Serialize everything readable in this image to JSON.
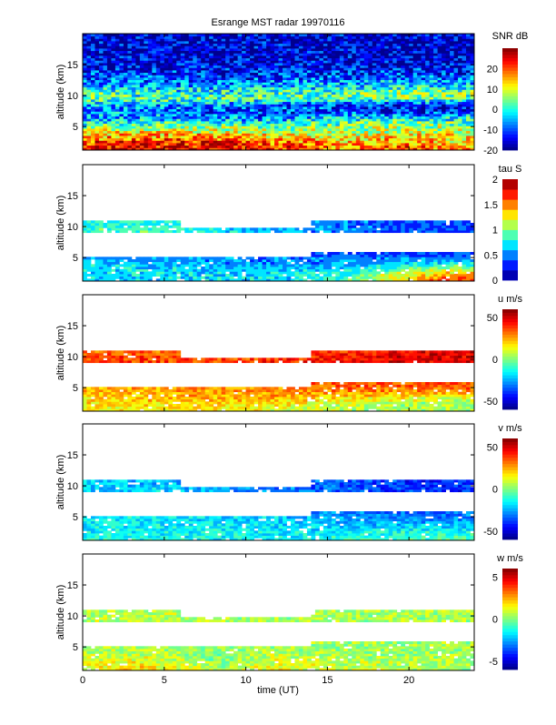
{
  "chart_data": {
    "type": "heatmap",
    "title": "Esrange MST radar 19970116",
    "xlabel": "time (UT)",
    "xlim": [
      0,
      24
    ],
    "xticks": [
      0,
      5,
      10,
      15,
      20
    ],
    "ylabel": "altitude (km)",
    "ylim": [
      1.2,
      20
    ],
    "yticks": [
      5,
      10,
      15
    ],
    "grid_times": [
      0,
      4,
      8,
      12,
      16,
      20,
      24
    ],
    "grid_altitudes": [
      1.5,
      2.5,
      3.5,
      4.5,
      5.5,
      6.5,
      7.5,
      8.5,
      9.5,
      10.5,
      11.5,
      13,
      15,
      17,
      19
    ],
    "panels": [
      {
        "name": "snr",
        "colorbar_label": "SNR dB",
        "clim": [
          -20,
          30
        ],
        "cticks": [
          -20,
          -10,
          0,
          10,
          20
        ],
        "levels": 32,
        "values": [
          [
            24,
            25,
            24,
            22,
            18,
            20,
            16
          ],
          [
            20,
            23,
            24,
            18,
            15,
            17,
            12
          ],
          [
            15,
            16,
            15,
            12,
            10,
            13,
            12
          ],
          [
            10,
            10,
            10,
            6,
            6,
            8,
            8
          ],
          [
            0,
            2,
            0,
            0,
            4,
            6,
            4
          ],
          [
            -4,
            -6,
            -6,
            -8,
            -4,
            -2,
            -2
          ],
          [
            -6,
            -8,
            -10,
            -12,
            -12,
            -14,
            -14
          ],
          [
            -4,
            -6,
            -6,
            -8,
            -12,
            -14,
            -14
          ],
          [
            4,
            2,
            2,
            2,
            4,
            4,
            2
          ],
          [
            2,
            0,
            0,
            2,
            2,
            6,
            6
          ],
          [
            -4,
            -6,
            -6,
            -4,
            -4,
            -2,
            -4
          ],
          [
            -10,
            -10,
            -12,
            -10,
            -10,
            -8,
            -10
          ],
          [
            -14,
            -15,
            -15,
            -15,
            -15,
            -15,
            -15
          ],
          [
            -16,
            -16,
            -16,
            -16,
            -16,
            -16,
            -16
          ],
          [
            -16,
            -16,
            -16,
            -16,
            -16,
            -16,
            -16
          ]
        ]
      },
      {
        "name": "tau",
        "colorbar_label": "tau S",
        "clim": [
          0,
          2
        ],
        "cticks": [
          0,
          0.5,
          1,
          1.5,
          2
        ],
        "levels": 10,
        "values": [
          [
            0.7,
            0.7,
            0.7,
            0.7,
            0.8,
            1.4,
            1.7
          ],
          [
            0.7,
            0.7,
            0.7,
            0.7,
            0.8,
            1.2,
            1.4
          ],
          [
            0.7,
            0.7,
            0.6,
            0.6,
            0.6,
            0.9,
            1.0
          ],
          [
            0.6,
            0.6,
            0.5,
            0.5,
            0.5,
            0.6,
            0.6
          ],
          [
            null,
            null,
            null,
            null,
            0.4,
            0.4,
            0.4
          ],
          [
            null,
            null,
            null,
            null,
            null,
            null,
            null
          ],
          [
            null,
            null,
            null,
            null,
            null,
            null,
            null
          ],
          [
            null,
            null,
            null,
            null,
            null,
            null,
            null
          ],
          [
            0.9,
            0.9,
            0.7,
            0.6,
            0.5,
            0.4,
            0.4
          ],
          [
            0.8,
            0.8,
            null,
            null,
            0.5,
            0.4,
            0.4
          ],
          [
            null,
            null,
            null,
            null,
            null,
            null,
            null
          ],
          [
            null,
            null,
            null,
            null,
            null,
            null,
            null
          ],
          [
            null,
            null,
            null,
            null,
            null,
            null,
            null
          ],
          [
            null,
            null,
            null,
            null,
            null,
            null,
            null
          ],
          [
            null,
            null,
            null,
            null,
            null,
            null,
            null
          ]
        ]
      },
      {
        "name": "u",
        "colorbar_label": "u m/s",
        "clim": [
          -60,
          60
        ],
        "cticks": [
          -50,
          0,
          50
        ],
        "levels": 32,
        "values": [
          [
            15,
            15,
            15,
            12,
            5,
            5,
            5
          ],
          [
            18,
            20,
            20,
            18,
            8,
            5,
            5
          ],
          [
            20,
            22,
            25,
            25,
            20,
            15,
            12
          ],
          [
            22,
            25,
            28,
            30,
            30,
            30,
            30
          ],
          [
            null,
            null,
            null,
            null,
            35,
            35,
            35
          ],
          [
            null,
            null,
            null,
            null,
            null,
            null,
            null
          ],
          [
            null,
            null,
            null,
            null,
            null,
            null,
            null
          ],
          [
            null,
            null,
            null,
            null,
            null,
            null,
            null
          ],
          [
            38,
            38,
            38,
            40,
            45,
            48,
            50
          ],
          [
            35,
            35,
            null,
            null,
            42,
            48,
            50
          ],
          [
            null,
            null,
            null,
            null,
            null,
            null,
            null
          ],
          [
            null,
            null,
            null,
            null,
            null,
            null,
            null
          ],
          [
            null,
            null,
            null,
            null,
            null,
            null,
            null
          ],
          [
            null,
            null,
            null,
            null,
            null,
            null,
            null
          ],
          [
            null,
            null,
            null,
            null,
            null,
            null,
            null
          ]
        ]
      },
      {
        "name": "v",
        "colorbar_label": "v m/s",
        "clim": [
          -60,
          60
        ],
        "cticks": [
          -50,
          0,
          50
        ],
        "levels": 32,
        "values": [
          [
            -12,
            -12,
            -14,
            -15,
            -10,
            -8,
            -8
          ],
          [
            -15,
            -15,
            -15,
            -16,
            -15,
            -12,
            -12
          ],
          [
            -15,
            -16,
            -16,
            -18,
            -20,
            -20,
            -20
          ],
          [
            -16,
            -16,
            -18,
            -20,
            -25,
            -28,
            -28
          ],
          [
            null,
            null,
            null,
            null,
            -30,
            -32,
            -32
          ],
          [
            null,
            null,
            null,
            null,
            null,
            null,
            null
          ],
          [
            null,
            null,
            null,
            null,
            null,
            null,
            null
          ],
          [
            null,
            null,
            null,
            null,
            null,
            null,
            null
          ],
          [
            -20,
            -20,
            -24,
            -30,
            -35,
            -38,
            -40
          ],
          [
            -22,
            -22,
            null,
            null,
            -35,
            -40,
            -42
          ],
          [
            null,
            null,
            null,
            null,
            null,
            null,
            null
          ],
          [
            null,
            null,
            null,
            null,
            null,
            null,
            null
          ],
          [
            null,
            null,
            null,
            null,
            null,
            null,
            null
          ],
          [
            null,
            null,
            null,
            null,
            null,
            null,
            null
          ],
          [
            null,
            null,
            null,
            null,
            null,
            null,
            null
          ]
        ]
      },
      {
        "name": "w",
        "colorbar_label": "w m/s",
        "clim": [
          -6,
          6
        ],
        "cticks": [
          -5,
          0,
          5
        ],
        "levels": 32,
        "values": [
          [
            1.5,
            1.8,
            0.5,
            1.5,
            0.8,
            0.6,
            0.5
          ],
          [
            1.2,
            1.5,
            0.2,
            1.2,
            0.8,
            0.6,
            0.5
          ],
          [
            0.8,
            1.0,
            0.0,
            0.8,
            0.5,
            0.4,
            0.4
          ],
          [
            0.6,
            0.6,
            0.2,
            0.5,
            0.4,
            0.3,
            0.3
          ],
          [
            null,
            null,
            null,
            null,
            0.4,
            0.4,
            0.4
          ],
          [
            null,
            null,
            null,
            null,
            null,
            null,
            null
          ],
          [
            null,
            null,
            null,
            null,
            null,
            null,
            null
          ],
          [
            null,
            null,
            null,
            null,
            null,
            null,
            null
          ],
          [
            0.6,
            0.6,
            0.5,
            0.4,
            0.4,
            0.5,
            0.5
          ],
          [
            0.6,
            0.6,
            null,
            null,
            0.4,
            0.5,
            0.6
          ],
          [
            null,
            null,
            null,
            null,
            null,
            null,
            null
          ],
          [
            null,
            null,
            null,
            null,
            null,
            null,
            null
          ],
          [
            null,
            null,
            null,
            null,
            null,
            null,
            null
          ],
          [
            null,
            null,
            null,
            null,
            null,
            null,
            null
          ],
          [
            null,
            null,
            null,
            null,
            null,
            null,
            null
          ]
        ]
      }
    ]
  }
}
